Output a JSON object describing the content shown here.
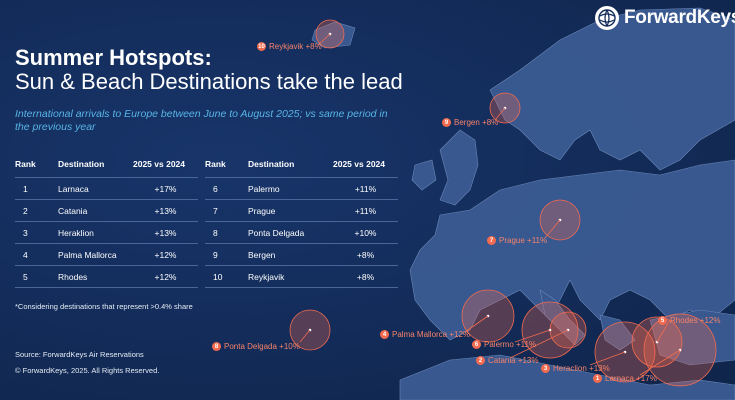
{
  "brand": {
    "name": "ForwardKeys",
    "logo_icon": "globe-icon"
  },
  "title_line1": "Summer Hotspots:",
  "title_line2": "Sun & Beach Destinations take the lead",
  "subtitle": "International arrivals to Europe between June to August 2025; vs same period in the previous year",
  "table": {
    "headers": [
      "Rank",
      "Destination",
      "2025 vs 2024"
    ],
    "left": [
      {
        "rank": "1",
        "destination": "Larnaca",
        "change": "+17%"
      },
      {
        "rank": "2",
        "destination": "Catania",
        "change": "+13%"
      },
      {
        "rank": "3",
        "destination": "Heraklion",
        "change": "+13%"
      },
      {
        "rank": "4",
        "destination": "Palma Mallorca",
        "change": "+12%"
      },
      {
        "rank": "5",
        "destination": "Rhodes",
        "change": "+12%"
      }
    ],
    "right": [
      {
        "rank": "6",
        "destination": "Palermo",
        "change": "+11%"
      },
      {
        "rank": "7",
        "destination": "Prague",
        "change": "+11%"
      },
      {
        "rank": "8",
        "destination": "Ponta Delgada",
        "change": "+10%"
      },
      {
        "rank": "9",
        "destination": "Bergen",
        "change": "+8%"
      },
      {
        "rank": "10",
        "destination": "Reykjavik",
        "change": "+8%"
      }
    ]
  },
  "footnote": "*Considering destinations that represent >0.4% share",
  "source": "Source: ForwardKeys Air Reservations",
  "copyright": "© ForwardKeys, 2025. All Rights Reserved.",
  "map_labels": [
    {
      "num": "10",
      "text": "Reykjavik +8%"
    },
    {
      "num": "9",
      "text": "Bergen +8%"
    },
    {
      "num": "7",
      "text": "Prague +11%"
    },
    {
      "num": "8",
      "text": "Ponta Delgada +10%"
    },
    {
      "num": "4",
      "text": "Palma Mallorca +12%"
    },
    {
      "num": "6",
      "text": "Palermo +11%"
    },
    {
      "num": "2",
      "text": "Catania +13%"
    },
    {
      "num": "3",
      "text": "Heraclion +13%"
    },
    {
      "num": "1",
      "text": "Larnaca +17%"
    },
    {
      "num": "5",
      "text": "Rhodes +12%"
    }
  ],
  "colors": {
    "background": "#132c5a",
    "land": "#3e5f97",
    "accent": "#f26b4f",
    "subtitle": "#58b4e6"
  }
}
